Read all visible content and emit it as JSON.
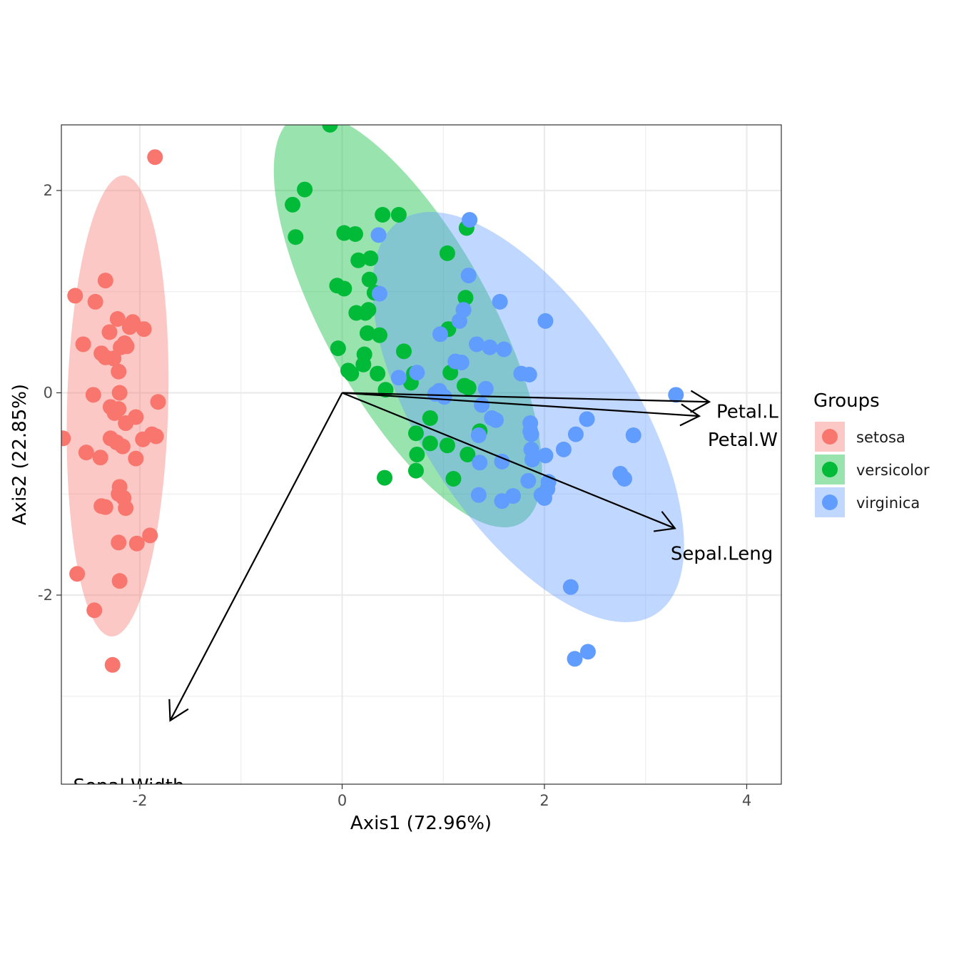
{
  "chart_data": {
    "type": "scatter",
    "xlabel": "Axis1 (72.96%)",
    "ylabel": "Axis2 (22.85%)",
    "xlim": [
      -2.78,
      4.25
    ],
    "ylim": [
      -3.68,
      2.65
    ],
    "x_ticks": [
      -2,
      0,
      2,
      4
    ],
    "y_ticks": [
      2,
      0,
      -2
    ],
    "x_tick_labels": [
      "-2",
      "0",
      "2",
      "4"
    ],
    "y_tick_labels": [
      "2",
      "0",
      "-2"
    ],
    "grid": true,
    "legend": {
      "title": "Groups",
      "placement": "right"
    },
    "series": [
      {
        "name": "setosa",
        "color": "#F8766D",
        "ellipse_fill": "#F8766D",
        "ellipse": {
          "cx": -2.22,
          "cy": -0.13,
          "rx": 0.5,
          "ry": 2.28,
          "angle": 1.5
        },
        "points": [
          [
            -1.85,
            2.33
          ],
          [
            -2.34,
            1.11
          ],
          [
            -2.64,
            0.96
          ],
          [
            -2.44,
            0.9
          ],
          [
            -2.22,
            0.73
          ],
          [
            -2.07,
            0.7
          ],
          [
            -2.1,
            0.65
          ],
          [
            -1.96,
            0.63
          ],
          [
            -2.3,
            0.6
          ],
          [
            -2.15,
            0.49
          ],
          [
            -2.13,
            0.46
          ],
          [
            -2.56,
            0.48
          ],
          [
            -2.19,
            0.45
          ],
          [
            -2.38,
            0.39
          ],
          [
            -2.34,
            0.35
          ],
          [
            -2.26,
            0.34
          ],
          [
            -2.21,
            0.21
          ],
          [
            -2.46,
            -0.02
          ],
          [
            -2.2,
            0.0
          ],
          [
            -1.82,
            -0.09
          ],
          [
            -2.29,
            -0.14
          ],
          [
            -2.21,
            -0.16
          ],
          [
            -2.25,
            -0.2
          ],
          [
            -2.04,
            -0.24
          ],
          [
            -2.14,
            -0.3
          ],
          [
            -2.76,
            -0.45
          ],
          [
            -1.88,
            -0.41
          ],
          [
            -1.84,
            -0.43
          ],
          [
            -1.97,
            -0.46
          ],
          [
            -2.29,
            -0.45
          ],
          [
            -2.23,
            -0.49
          ],
          [
            -2.17,
            -0.53
          ],
          [
            -2.53,
            -0.59
          ],
          [
            -2.39,
            -0.64
          ],
          [
            -2.04,
            -0.65
          ],
          [
            -2.2,
            -0.93
          ],
          [
            -2.21,
            -1.0
          ],
          [
            -2.16,
            -1.04
          ],
          [
            -2.38,
            -1.12
          ],
          [
            -2.34,
            -1.13
          ],
          [
            -2.14,
            -1.14
          ],
          [
            -1.9,
            -1.41
          ],
          [
            -2.21,
            -1.48
          ],
          [
            -2.03,
            -1.49
          ],
          [
            -2.62,
            -1.79
          ],
          [
            -2.2,
            -1.86
          ],
          [
            -2.45,
            -2.15
          ],
          [
            -2.27,
            -2.69
          ]
        ]
      },
      {
        "name": "versicolor",
        "color": "#00BA38",
        "ellipse_fill": "#00BA38",
        "ellipse": {
          "cx": 0.65,
          "cy": 0.72,
          "rx": 0.82,
          "ry": 2.3,
          "angle": -29
        },
        "points": [
          [
            -0.12,
            2.65
          ],
          [
            -0.37,
            2.01
          ],
          [
            -0.49,
            1.86
          ],
          [
            -0.46,
            1.54
          ],
          [
            0.4,
            1.76
          ],
          [
            0.56,
            1.76
          ],
          [
            0.02,
            1.58
          ],
          [
            0.13,
            1.57
          ],
          [
            0.28,
            1.33
          ],
          [
            0.16,
            1.31
          ],
          [
            0.27,
            1.12
          ],
          [
            -0.05,
            1.06
          ],
          [
            0.02,
            1.03
          ],
          [
            0.32,
            0.99
          ],
          [
            0.26,
            0.82
          ],
          [
            0.23,
            0.79
          ],
          [
            0.14,
            0.79
          ],
          [
            0.25,
            0.59
          ],
          [
            -0.04,
            0.44
          ],
          [
            0.22,
            0.38
          ],
          [
            0.06,
            0.22
          ],
          [
            0.21,
            0.28
          ],
          [
            0.09,
            0.19
          ],
          [
            0.35,
            0.19
          ],
          [
            0.43,
            0.03
          ],
          [
            0.37,
            0.57
          ],
          [
            0.42,
            -0.84
          ],
          [
            0.73,
            -0.77
          ],
          [
            0.74,
            -0.61
          ],
          [
            0.61,
            0.41
          ],
          [
            0.71,
            0.19
          ],
          [
            0.68,
            0.1
          ],
          [
            1.04,
            1.38
          ],
          [
            1.23,
            1.63
          ],
          [
            1.22,
            0.94
          ],
          [
            1.05,
            0.63
          ],
          [
            1.07,
            0.2
          ],
          [
            1.21,
            0.07
          ],
          [
            1.25,
            0.05
          ],
          [
            0.87,
            -0.25
          ],
          [
            1.04,
            -0.52
          ],
          [
            1.24,
            -0.61
          ],
          [
            1.1,
            -0.85
          ],
          [
            1.36,
            -0.38
          ],
          [
            0.73,
            -0.4
          ],
          [
            0.87,
            -0.5
          ]
        ]
      },
      {
        "name": "virginica",
        "color": "#619CFF",
        "ellipse_fill": "#619CFF",
        "ellipse": {
          "cx": 1.84,
          "cy": -0.24,
          "rx": 1.05,
          "ry": 2.32,
          "angle": -33
        },
        "points": [
          [
            1.26,
            1.71
          ],
          [
            1.25,
            1.16
          ],
          [
            0.36,
            1.56
          ],
          [
            0.37,
            0.98
          ],
          [
            1.56,
            0.9
          ],
          [
            2.01,
            0.71
          ],
          [
            1.2,
            0.82
          ],
          [
            1.16,
            0.71
          ],
          [
            0.97,
            0.58
          ],
          [
            1.33,
            0.48
          ],
          [
            1.46,
            0.45
          ],
          [
            1.6,
            0.43
          ],
          [
            1.77,
            0.19
          ],
          [
            1.85,
            0.18
          ],
          [
            1.12,
            0.31
          ],
          [
            1.18,
            0.3
          ],
          [
            0.74,
            0.2
          ],
          [
            0.56,
            0.15
          ],
          [
            0.96,
            0.02
          ],
          [
            0.92,
            -0.01
          ],
          [
            1.42,
            0.04
          ],
          [
            1.01,
            -0.04
          ],
          [
            3.3,
            -0.02
          ],
          [
            2.42,
            -0.26
          ],
          [
            1.48,
            -0.25
          ],
          [
            1.52,
            -0.27
          ],
          [
            1.86,
            -0.3
          ],
          [
            1.86,
            -0.38
          ],
          [
            1.87,
            -0.41
          ],
          [
            2.31,
            -0.41
          ],
          [
            1.35,
            -0.42
          ],
          [
            2.88,
            -0.42
          ],
          [
            1.87,
            -0.56
          ],
          [
            2.01,
            -0.62
          ],
          [
            1.88,
            -0.66
          ],
          [
            2.19,
            -0.56
          ],
          [
            1.58,
            -0.68
          ],
          [
            1.36,
            -0.69
          ],
          [
            2.75,
            -0.8
          ],
          [
            2.79,
            -0.85
          ],
          [
            1.84,
            -0.87
          ],
          [
            2.04,
            -0.88
          ],
          [
            2.03,
            -0.95
          ],
          [
            1.97,
            -1.01
          ],
          [
            2.0,
            -1.04
          ],
          [
            1.69,
            -1.02
          ],
          [
            1.58,
            -1.07
          ],
          [
            1.35,
            -1.01
          ],
          [
            2.26,
            -1.92
          ],
          [
            2.3,
            -2.63
          ],
          [
            2.43,
            -2.56
          ],
          [
            1.38,
            -0.12
          ]
        ]
      }
    ],
    "loadings": [
      {
        "name": "Petal.Length",
        "label_shown": "Petal.L",
        "x": 3.63,
        "y": -0.09
      },
      {
        "name": "Petal.Width",
        "label_shown": "Petal.W",
        "x": 3.53,
        "y": -0.23
      },
      {
        "name": "Sepal.Length",
        "label_shown": "Sepal.Leng",
        "x": 3.29,
        "y": -1.34
      },
      {
        "name": "Sepal.Width",
        "label_shown": "Sepal.Width",
        "x": -1.7,
        "y": -3.24
      }
    ]
  }
}
